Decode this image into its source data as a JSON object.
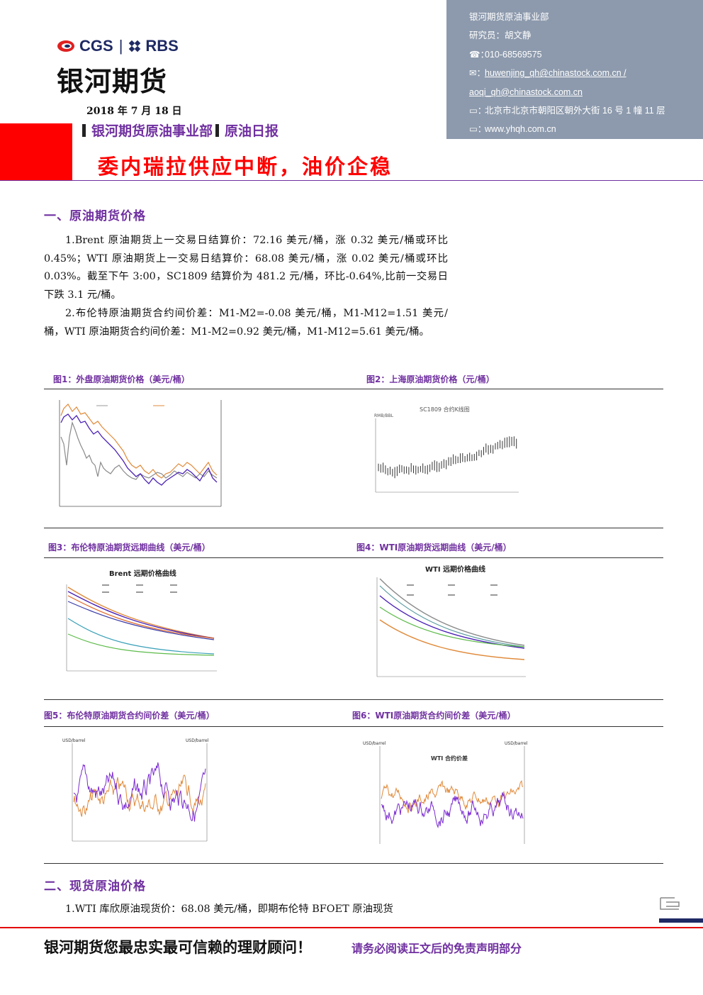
{
  "header": {
    "logo_cgs": "CGS",
    "logo_sep": "|",
    "logo_rbs": "RBS",
    "logo_cn": "银河期货",
    "date": "2018 年 7 月 18 日",
    "dept": "银河期货原油事业部",
    "report_type": "原油日报",
    "title": "委内瑞拉供应中断，油价企稳"
  },
  "contact": {
    "dept": "银河期货原油事业部",
    "researcher": "研究员：胡文静",
    "phone": "010-68569575",
    "email1": "huwenjing_qh@chinastock.com.cn /",
    "email2": "aoqi_qh@chinastock.com.cn",
    "address": "北京市北京市朝阳区朝外大街 16 号 1 幢 11 层",
    "website": "www.yhqh.com.cn"
  },
  "section1": {
    "title": "一、原油期货价格",
    "p1": "1.Brent 原油期货上一交易日结算价：72.16 美元/桶，涨 0.32 美元/桶或环比 0.45%；WTI 原油期货上一交易日结算价：68.08 美元/桶，涨 0.02 美元/桶或环比 0.03%。截至下午 3:00，SC1809 结算价为 481.2 元/桶，环比-0.64%,比前一交易日下跌 3.1 元/桶。",
    "p2": "2.布伦特原油期货合约间价差：M1-M2=-0.08 美元/桶，M1-M12=1.51 美元/桶，WTI 原油期货合约间价差：M1-M2=0.92 美元/桶，M1-M12=5.61 美元/桶。"
  },
  "figures": {
    "fig1": "图1：外盘原油期货价格（美元/桶）",
    "fig2": "图2：上海原油期货价格（元/桶）",
    "fig3": "图3：布伦特原油期货远期曲线（美元/桶）",
    "fig4": "图4：WTI原油期货远期曲线（美元/桶）",
    "fig5": "图5：布伦特原油期货合约间价差（美元/桶）",
    "fig6": "图6：WTI原油期货合约间价差（美元/桶）"
  },
  "chart_text": {
    "c2_title": "SC1809 合约K线图",
    "c2_unit": "RMB/BBL",
    "c3_title": "Brent 远期价格曲线",
    "c4_title": "WTI 远期价格曲线",
    "c5_unit_l": "USD/barrel",
    "c5_unit_r": "USD/barrel",
    "c6_unit_l": "USD/barrel",
    "c6_unit_r": "USD/barrel",
    "c6_title": "WTI 合约价差"
  },
  "section2": {
    "title": "二、现货原油价格",
    "p1": "1.WTI 库欣原油现货价：68.08 美元/桶，即期布伦特 BFOET 原油现货"
  },
  "footer": {
    "slogan": "银河期货您最忠实最可信赖的理财顾问！",
    "disclaimer": "请务必阅读正文后的免责声明部分"
  },
  "colors": {
    "accent_purple": "#7030a0",
    "red": "#ff0000",
    "contact_bg": "#8d9aad",
    "navy": "#1f2a64"
  }
}
